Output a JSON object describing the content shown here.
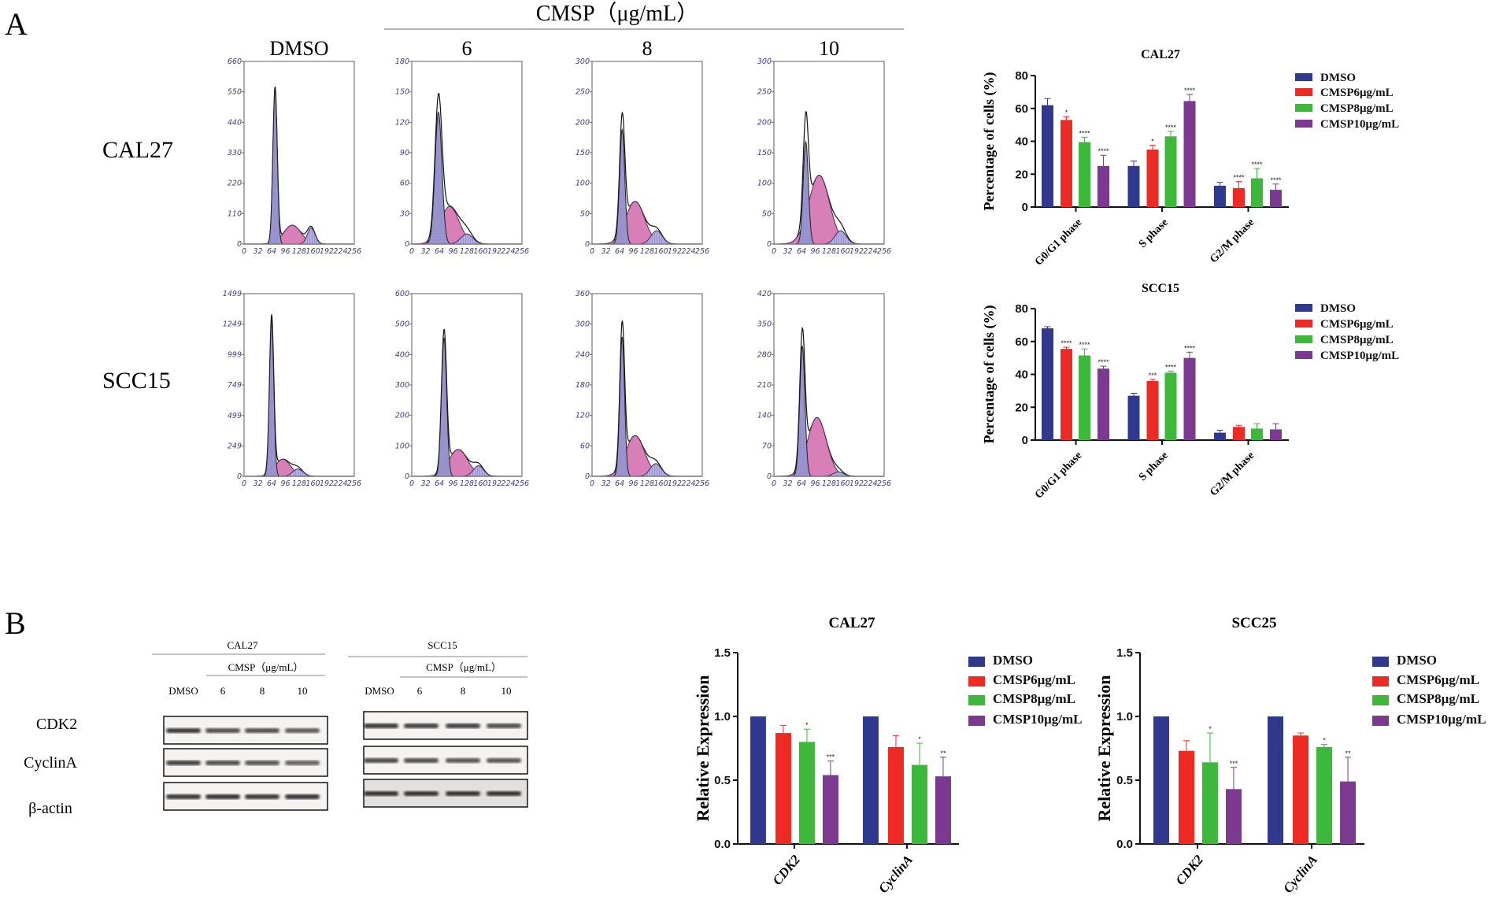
{
  "panel_a": {
    "letter": "A",
    "treatment_header": "CMSP（μg/mL）",
    "column_labels": [
      "DMSO",
      "6",
      "8",
      "10"
    ],
    "row_labels": [
      "CAL27",
      "SCC15"
    ]
  },
  "panel_b": {
    "letter": "B",
    "blots": [
      {
        "cell_line": "CAL27",
        "treatment_header": "CMSP（μg/mL）",
        "lanes": [
          "DMSO",
          "6",
          "8",
          "10"
        ],
        "band_intensity": {
          "CDK2": [
            0.9,
            0.75,
            0.75,
            0.65
          ],
          "CyclinA": [
            0.85,
            0.75,
            0.7,
            0.6
          ],
          "β-actin": [
            0.9,
            0.95,
            0.9,
            0.95
          ]
        }
      },
      {
        "cell_line": "SCC15",
        "treatment_header": "CMSP（μg/mL）",
        "lanes": [
          "DMSO",
          "6",
          "8",
          "10"
        ],
        "band_intensity": {
          "CDK2": [
            0.9,
            0.85,
            0.85,
            0.75
          ],
          "CyclinA": [
            0.8,
            0.75,
            0.7,
            0.7
          ],
          "β-actin": [
            0.95,
            0.95,
            0.95,
            0.95
          ]
        }
      }
    ],
    "proteins": [
      "CDK2",
      "CyclinA",
      "β-actin"
    ]
  },
  "colors": {
    "DMSO": "#2f3a8f",
    "CMSP6": "#ee2a24",
    "CMSP8": "#3db83b",
    "CMSP10": "#7b3a8f",
    "G1": "#9a95cf",
    "S": "#d97fb7",
    "G2": "#a9a4d8"
  },
  "chart_data": [
    {
      "type": "area",
      "id": "hist-CAL27-DMSO",
      "cell_line": "CAL27",
      "condition": "DMSO",
      "xlim": [
        0,
        256
      ],
      "xticks": [
        0,
        32,
        64,
        96,
        128,
        160,
        192,
        224,
        256
      ],
      "ylim": [
        0,
        660
      ],
      "yticks": [
        0,
        110,
        220,
        330,
        440,
        550,
        660
      ],
      "components": {
        "G1": {
          "mean": 72,
          "height": 560,
          "sd": 5
        },
        "S": {
          "mean": 112,
          "height": 68,
          "sd": 20
        },
        "G2": {
          "mean": 156,
          "height": 58,
          "sd": 9
        }
      }
    },
    {
      "type": "area",
      "id": "hist-CAL27-6",
      "cell_line": "CAL27",
      "condition": "6",
      "xlim": [
        0,
        256
      ],
      "xticks": [
        0,
        32,
        64,
        96,
        128,
        160,
        192,
        224,
        256
      ],
      "ylim": [
        0,
        180
      ],
      "yticks": [
        0,
        30,
        60,
        90,
        120,
        150,
        180
      ],
      "components": {
        "G1": {
          "mean": 62,
          "height": 130,
          "sd": 8
        },
        "S": {
          "mean": 88,
          "height": 37,
          "sd": 22
        },
        "G2": {
          "mean": 128,
          "height": 10,
          "sd": 14
        }
      }
    },
    {
      "type": "area",
      "id": "hist-CAL27-8",
      "cell_line": "CAL27",
      "condition": "8",
      "xlim": [
        0,
        256
      ],
      "xticks": [
        0,
        32,
        64,
        96,
        128,
        160,
        192,
        224,
        256
      ],
      "ylim": [
        0,
        300
      ],
      "yticks": [
        0,
        50,
        100,
        150,
        200,
        250,
        300
      ],
      "components": {
        "G1": {
          "mean": 70,
          "height": 188,
          "sd": 6
        },
        "S": {
          "mean": 100,
          "height": 70,
          "sd": 22
        },
        "G2": {
          "mean": 150,
          "height": 22,
          "sd": 13
        }
      }
    },
    {
      "type": "area",
      "id": "hist-CAL27-10",
      "cell_line": "CAL27",
      "condition": "10",
      "xlim": [
        0,
        256
      ],
      "xticks": [
        0,
        32,
        64,
        96,
        128,
        160,
        192,
        224,
        256
      ],
      "ylim": [
        0,
        300
      ],
      "yticks": [
        0,
        50,
        100,
        150,
        200,
        250,
        300
      ],
      "components": {
        "G1": {
          "mean": 74,
          "height": 168,
          "sd": 6
        },
        "S": {
          "mean": 105,
          "height": 113,
          "sd": 24
        },
        "G2": {
          "mean": 155,
          "height": 22,
          "sd": 13
        }
      }
    },
    {
      "type": "area",
      "id": "hist-SCC15-DMSO",
      "cell_line": "SCC15",
      "condition": "DMSO",
      "xlim": [
        0,
        256
      ],
      "xticks": [
        0,
        32,
        64,
        96,
        128,
        160,
        192,
        224,
        256
      ],
      "ylim": [
        0,
        1499
      ],
      "yticks": [
        0,
        249,
        499,
        749,
        999,
        1249,
        1499
      ],
      "components": {
        "G1": {
          "mean": 64,
          "height": 1280,
          "sd": 5
        },
        "S": {
          "mean": 90,
          "height": 140,
          "sd": 18
        },
        "G2": {
          "mean": 125,
          "height": 60,
          "sd": 12
        }
      }
    },
    {
      "type": "area",
      "id": "hist-SCC15-6",
      "cell_line": "SCC15",
      "condition": "6",
      "xlim": [
        0,
        256
      ],
      "xticks": [
        0,
        32,
        64,
        96,
        128,
        160,
        192,
        224,
        256
      ],
      "ylim": [
        0,
        600
      ],
      "yticks": [
        0,
        100,
        200,
        300,
        400,
        500,
        600
      ],
      "components": {
        "G1": {
          "mean": 75,
          "height": 455,
          "sd": 6
        },
        "S": {
          "mean": 108,
          "height": 88,
          "sd": 22
        },
        "G2": {
          "mean": 155,
          "height": 35,
          "sd": 12
        }
      }
    },
    {
      "type": "area",
      "id": "hist-SCC15-8",
      "cell_line": "SCC15",
      "condition": "8",
      "xlim": [
        0,
        256
      ],
      "xticks": [
        0,
        32,
        64,
        96,
        128,
        160,
        192,
        224,
        256
      ],
      "ylim": [
        0,
        360
      ],
      "yticks": [
        0,
        60,
        120,
        180,
        240,
        300,
        360
      ],
      "components": {
        "G1": {
          "mean": 70,
          "height": 275,
          "sd": 5.5
        },
        "S": {
          "mean": 100,
          "height": 80,
          "sd": 22
        },
        "G2": {
          "mean": 148,
          "height": 25,
          "sd": 13
        }
      }
    },
    {
      "type": "area",
      "id": "hist-SCC15-10",
      "cell_line": "SCC15",
      "condition": "10",
      "xlim": [
        0,
        256
      ],
      "xticks": [
        0,
        32,
        64,
        96,
        128,
        160,
        192,
        224,
        256
      ],
      "ylim": [
        0,
        420
      ],
      "yticks": [
        0,
        70,
        140,
        210,
        280,
        350,
        420
      ],
      "components": {
        "G1": {
          "mean": 66,
          "height": 300,
          "sd": 6
        },
        "S": {
          "mean": 100,
          "height": 135,
          "sd": 22
        },
        "G2": {
          "mean": 150,
          "height": 10,
          "sd": 12
        }
      }
    },
    {
      "type": "bar",
      "id": "bar-cycle-CAL27",
      "title": "CAL27",
      "ylabel": "Percentage of cells (%)",
      "xlabel": "",
      "ylim": [
        0,
        80
      ],
      "yticks": [
        0,
        20,
        40,
        60,
        80
      ],
      "categories": [
        "G0/G1 phase",
        "S phase",
        "G2/M phase"
      ],
      "legend_position": "right",
      "series": [
        {
          "name": "DMSO",
          "values": [
            62,
            25,
            13
          ],
          "errors": [
            4,
            3,
            2
          ],
          "significance": [
            "",
            "",
            ""
          ]
        },
        {
          "name": "CMSP6μg/mL",
          "values": [
            53,
            35,
            11.5
          ],
          "errors": [
            2,
            2.5,
            4
          ],
          "significance": [
            "*",
            "*",
            "****"
          ]
        },
        {
          "name": "CMSP8μg/mL",
          "values": [
            39.5,
            43,
            17.5
          ],
          "errors": [
            3,
            3,
            6
          ],
          "significance": [
            "****",
            "****",
            "****"
          ]
        },
        {
          "name": "CMSP10μg/mL",
          "values": [
            25,
            64.5,
            10.5
          ],
          "errors": [
            6.5,
            4,
            3.5
          ],
          "significance": [
            "****",
            "****",
            "****"
          ]
        }
      ]
    },
    {
      "type": "bar",
      "id": "bar-cycle-SCC15",
      "title": "SCC15",
      "ylabel": "Percentage of cells (%)",
      "xlabel": "",
      "ylim": [
        0,
        80
      ],
      "yticks": [
        0,
        20,
        40,
        60,
        80
      ],
      "categories": [
        "G0/G1 phase",
        "S phase",
        "G2/M phase"
      ],
      "legend_position": "right",
      "series": [
        {
          "name": "DMSO",
          "values": [
            68,
            27,
            4.5
          ],
          "errors": [
            1,
            1.5,
            1.5
          ],
          "significance": [
            "",
            "",
            ""
          ]
        },
        {
          "name": "CMSP6μg/mL",
          "values": [
            55.5,
            36,
            8
          ],
          "errors": [
            1,
            1,
            1
          ],
          "significance": [
            "****",
            "***",
            ""
          ]
        },
        {
          "name": "CMSP8μg/mL",
          "values": [
            51.5,
            41,
            7
          ],
          "errors": [
            4,
            1,
            3
          ],
          "significance": [
            "****",
            "****",
            ""
          ]
        },
        {
          "name": "CMSP10μg/mL",
          "values": [
            43.5,
            50,
            6.5
          ],
          "errors": [
            1.5,
            3.5,
            3.5
          ],
          "significance": [
            "****",
            "****",
            ""
          ]
        }
      ]
    },
    {
      "type": "bar",
      "id": "bar-expr-CAL27",
      "title": "CAL27",
      "ylabel": "Relative Expression",
      "xlabel": "",
      "ylim": [
        0,
        1.5
      ],
      "yticks": [
        "0.0",
        "0.5",
        "1.0",
        "1.5"
      ],
      "categories": [
        "CDK2",
        "CyclinA"
      ],
      "legend_position": "right",
      "series": [
        {
          "name": "DMSO",
          "values": [
            1.0,
            1.0
          ],
          "errors": [
            0,
            0
          ],
          "significance": [
            "",
            ""
          ]
        },
        {
          "name": "CMSP6μg/mL",
          "values": [
            0.87,
            0.76
          ],
          "errors": [
            0.06,
            0.09
          ],
          "significance": [
            "",
            ""
          ]
        },
        {
          "name": "CMSP8μg/mL",
          "values": [
            0.8,
            0.62
          ],
          "errors": [
            0.1,
            0.17
          ],
          "significance": [
            "*",
            "*"
          ]
        },
        {
          "name": "CMSP10μg/mL",
          "values": [
            0.54,
            0.53
          ],
          "errors": [
            0.11,
            0.15
          ],
          "significance": [
            "***",
            "**"
          ]
        }
      ]
    },
    {
      "type": "bar",
      "id": "bar-expr-SCC25",
      "title": "SCC25",
      "ylabel": "Relative Expression",
      "xlabel": "",
      "ylim": [
        0,
        1.5
      ],
      "yticks": [
        "0.0",
        "0.5",
        "1.0",
        "1.5"
      ],
      "categories": [
        "CDK2",
        "CyclinA"
      ],
      "legend_position": "right",
      "series": [
        {
          "name": "DMSO",
          "values": [
            1.0,
            1.0
          ],
          "errors": [
            0,
            0
          ],
          "significance": [
            "",
            ""
          ]
        },
        {
          "name": "CMSP6μg/mL",
          "values": [
            0.73,
            0.85
          ],
          "errors": [
            0.08,
            0.02
          ],
          "significance": [
            "",
            ""
          ]
        },
        {
          "name": "CMSP8μg/mL",
          "values": [
            0.64,
            0.76
          ],
          "errors": [
            0.23,
            0.02
          ],
          "significance": [
            "*",
            "*"
          ]
        },
        {
          "name": "CMSP10μg/mL",
          "values": [
            0.43,
            0.49
          ],
          "errors": [
            0.17,
            0.19
          ],
          "significance": [
            "***",
            "**"
          ]
        }
      ]
    }
  ]
}
